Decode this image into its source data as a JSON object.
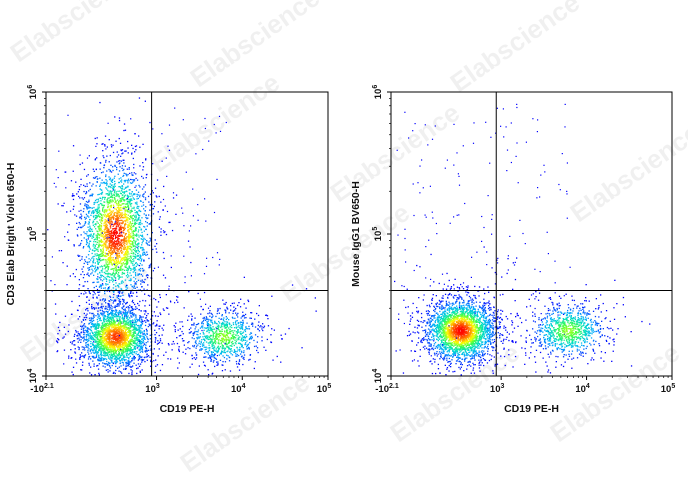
{
  "watermark": "Elabscience",
  "colors": {
    "density_scale": [
      "#0000ff",
      "#00aaff",
      "#00e0c0",
      "#40ff40",
      "#ffff00",
      "#ff8000",
      "#ff0000"
    ],
    "gate_line": "#000000",
    "frame": "#000000"
  },
  "chart_data": [
    {
      "type": "scatter",
      "subtype": "flow-cytometry-density-dot-plot",
      "xlabel": "CD19 PE-H",
      "ylabel": "CD3 Elab Bright Violet 650-H",
      "xscale": "biexponential",
      "yscale": "log",
      "x_ticks": [
        {
          "base": "-10",
          "exp": "2.1",
          "value": -125
        },
        {
          "base": "10",
          "exp": "3",
          "value": 1000
        },
        {
          "base": "10",
          "exp": "4",
          "value": 10000
        },
        {
          "base": "10",
          "exp": "5",
          "value": 100000
        }
      ],
      "y_ticks": [
        {
          "base": "10",
          "exp": "4",
          "value": 10000
        },
        {
          "base": "10",
          "exp": "5",
          "value": 100000
        },
        {
          "base": "10",
          "exp": "6",
          "value": 1000000
        }
      ],
      "xlim": [
        -125,
        100000
      ],
      "ylim": [
        10000,
        1000000
      ],
      "quadrant_gate": {
        "x": 800,
        "y": 40000
      },
      "populations": [
        {
          "name": "CD3+ CD19-",
          "x_center": 150,
          "y_center": 100000,
          "relative_density": 1.0
        },
        {
          "name": "CD3- CD19-",
          "x_center": 150,
          "y_center": 19000,
          "relative_density": 0.9
        },
        {
          "name": "CD3- CD19+",
          "x_center": 6000,
          "y_center": 19000,
          "relative_density": 0.35
        }
      ]
    },
    {
      "type": "scatter",
      "subtype": "flow-cytometry-density-dot-plot",
      "xlabel": "CD19 PE-H",
      "ylabel": "Mouse IgG1 BV650-H",
      "xscale": "biexponential",
      "yscale": "log",
      "x_ticks": [
        {
          "base": "-10",
          "exp": "2.1",
          "value": -125
        },
        {
          "base": "10",
          "exp": "3",
          "value": 1000
        },
        {
          "base": "10",
          "exp": "4",
          "value": 10000
        },
        {
          "base": "10",
          "exp": "5",
          "value": 100000
        }
      ],
      "y_ticks": [
        {
          "base": "10",
          "exp": "4",
          "value": 10000
        },
        {
          "base": "10",
          "exp": "5",
          "value": 100000
        },
        {
          "base": "10",
          "exp": "6",
          "value": 1000000
        }
      ],
      "xlim": [
        -125,
        100000
      ],
      "ylim": [
        10000,
        1000000
      ],
      "quadrant_gate": {
        "x": 800,
        "y": 40000
      },
      "populations": [
        {
          "name": "IgG1- CD19-",
          "x_center": 150,
          "y_center": 21000,
          "relative_density": 1.0
        },
        {
          "name": "IgG1- CD19+",
          "x_center": 6000,
          "y_center": 21000,
          "relative_density": 0.35
        }
      ]
    }
  ]
}
